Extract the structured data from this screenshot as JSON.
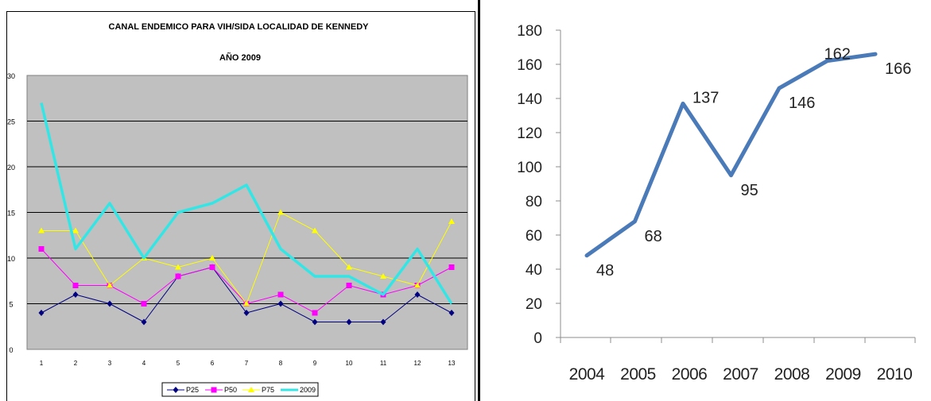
{
  "chart_data": [
    {
      "type": "line",
      "title": "CANAL ENDEMICO PARA VIH/SIDA  LOCALIDAD DE KENNEDY",
      "subtitle": "AÑO 2009",
      "xlabel": "",
      "ylabel": "",
      "categories": [
        "1",
        "2",
        "3",
        "4",
        "5",
        "6",
        "7",
        "8",
        "9",
        "10",
        "11",
        "12",
        "13"
      ],
      "ylim": [
        0,
        30
      ],
      "yticks": [
        "0",
        "5",
        "10",
        "15",
        "20",
        "25",
        "30"
      ],
      "grid": true,
      "legend": "bottom",
      "series": [
        {
          "name": "P25",
          "color": "#000080",
          "marker": "diamond",
          "values": [
            4,
            6,
            5,
            3,
            8,
            9,
            4,
            5,
            3,
            3,
            3,
            6,
            4
          ]
        },
        {
          "name": "P50",
          "color": "#ff00ff",
          "marker": "square",
          "values": [
            11,
            7,
            7,
            5,
            8,
            9,
            5,
            6,
            4,
            7,
            6,
            7,
            9
          ]
        },
        {
          "name": "P75",
          "color": "#ffff00",
          "marker": "triangle",
          "values": [
            13,
            13,
            7,
            10,
            9,
            10,
            5,
            15,
            13,
            9,
            8,
            7,
            14
          ]
        },
        {
          "name": "2009",
          "color": "#33e6e6",
          "marker": "none",
          "values": [
            27,
            11,
            16,
            10,
            15,
            16,
            18,
            11,
            8,
            8,
            6,
            11,
            5
          ]
        }
      ],
      "plot_bg": "#c0c0c0"
    },
    {
      "type": "line",
      "title": "",
      "categories": [
        "2004",
        "2005",
        "2006",
        "2007",
        "2008",
        "2009",
        "2010"
      ],
      "values": [
        48,
        68,
        137,
        95,
        146,
        162,
        166
      ],
      "data_labels": [
        "48",
        "68",
        "137",
        "95",
        "146",
        "162",
        "166"
      ],
      "ylim": [
        0,
        180
      ],
      "yticks": [
        "0",
        "20",
        "40",
        "60",
        "80",
        "100",
        "120",
        "140",
        "160",
        "180"
      ],
      "grid": false,
      "color": "#4a7ab8"
    }
  ]
}
